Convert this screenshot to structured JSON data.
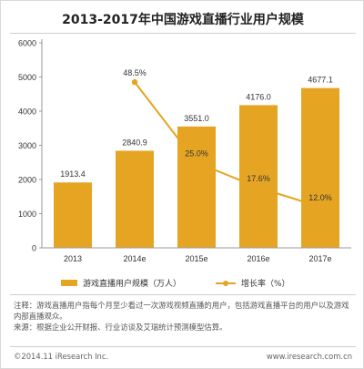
{
  "title": "2013-2017年中国游戏直播行业用户规模",
  "chart_data": {
    "type": "bar",
    "categories": [
      "2013",
      "2014e",
      "2015e",
      "2016e",
      "2017e"
    ],
    "series": [
      {
        "name": "游戏直播用户规模（万人）",
        "type": "bar",
        "values": [
          1913.4,
          2840.9,
          3551.0,
          4176.0,
          4677.1
        ],
        "labels": [
          "1913.4",
          "2840.9",
          "3551.0",
          "4176.0",
          "4677.1"
        ]
      },
      {
        "name": "增长率（%）",
        "type": "line",
        "values": [
          null,
          48.5,
          25.0,
          17.6,
          12.0
        ],
        "labels": [
          "",
          "48.5%",
          "25.0%",
          "17.6%",
          "12.0%"
        ]
      }
    ],
    "ylim": [
      0,
      6000
    ],
    "yticks": [
      "0",
      "1000",
      "2000",
      "3000",
      "4000",
      "5000",
      "6000"
    ],
    "y2lim": [
      0,
      60
    ],
    "grid": false,
    "legend": "bottom",
    "bar_color": "#E5A523",
    "line_color": "#E5A523"
  },
  "notes": [
    "注释：游戏直播用户指每个月至少看过一次游戏视频直播的用户，包括游戏直播平台的用户以及游戏内部直播观众。",
    "来源：根据企业公开财报、行业访谈及艾瑞统计预测模型估算。"
  ],
  "footer": {
    "left": "©2014.11 iResearch Inc.",
    "right": "www.iresearch.com.cn"
  }
}
